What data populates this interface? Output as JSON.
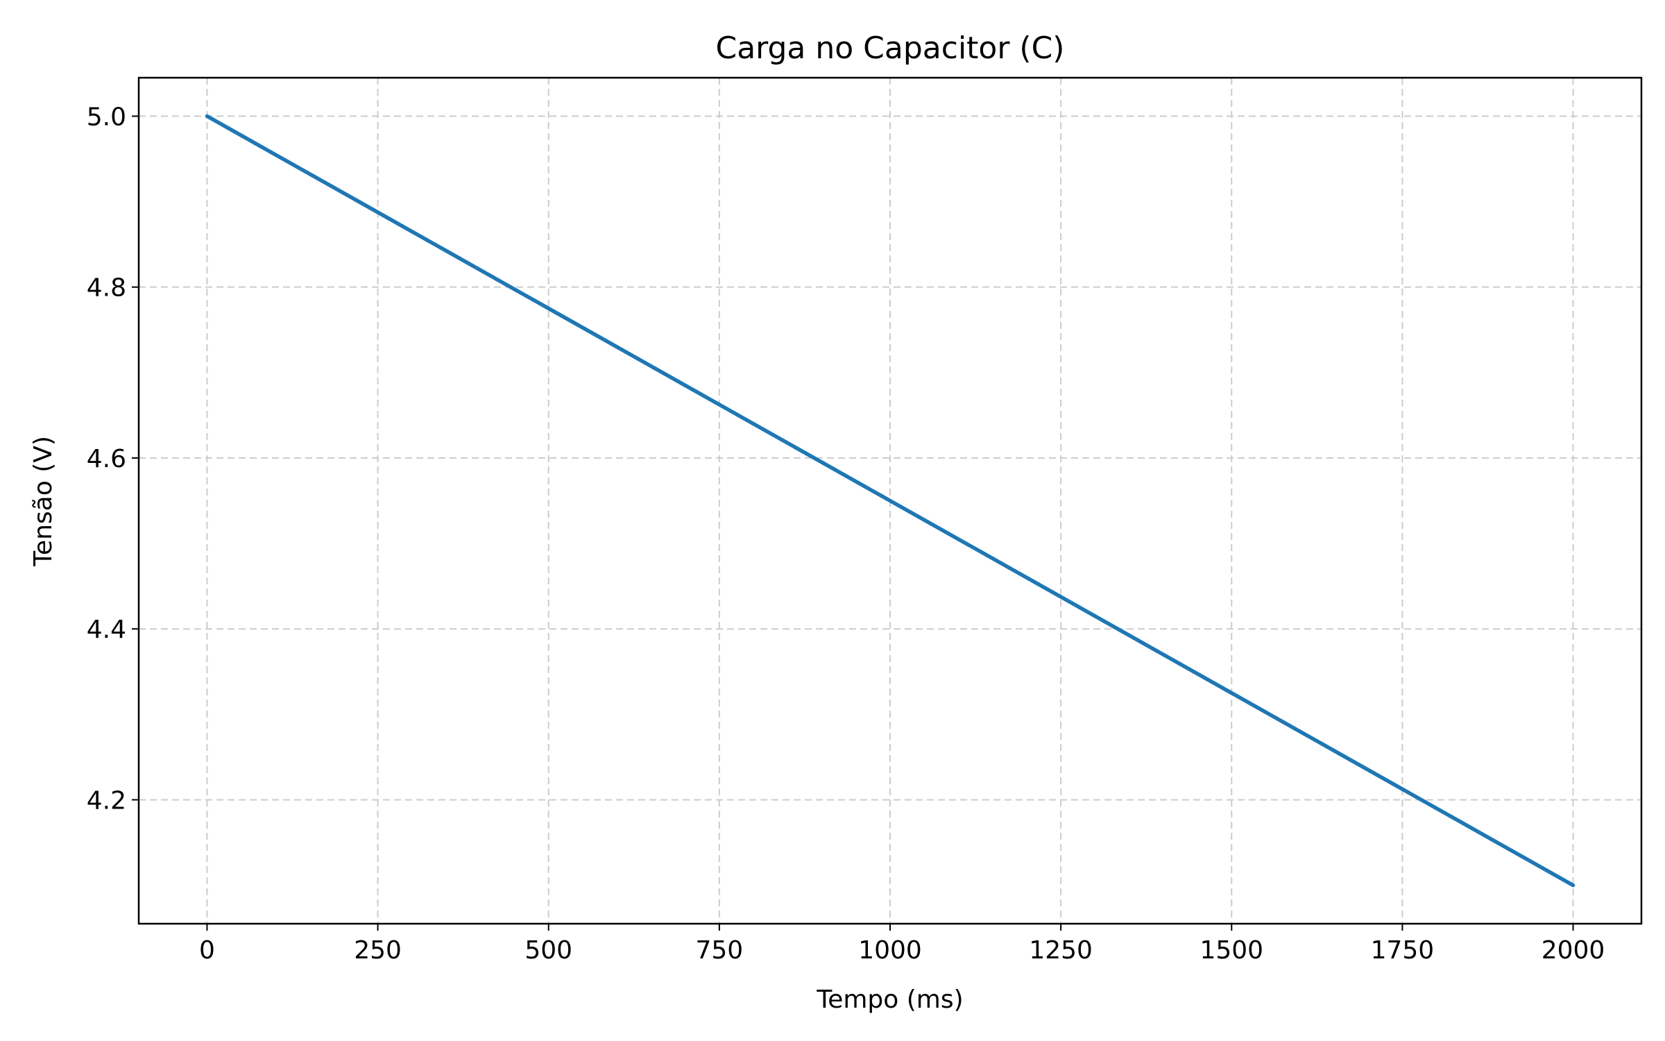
{
  "chart_data": {
    "type": "line",
    "title": "Carga no Capacitor (C)",
    "xlabel": "Tempo (ms)",
    "ylabel": "Tensão (V)",
    "xlim": [
      -100,
      2100
    ],
    "ylim": [
      4.055,
      5.045
    ],
    "x_ticks": [
      0,
      250,
      500,
      750,
      1000,
      1250,
      1500,
      1750,
      2000
    ],
    "x_tick_labels": [
      "0",
      "250",
      "500",
      "750",
      "1000",
      "1250",
      "1500",
      "1750",
      "2000"
    ],
    "y_ticks": [
      4.2,
      4.4,
      4.6,
      4.8,
      5.0
    ],
    "y_tick_labels": [
      "4.2",
      "4.4",
      "4.6",
      "4.8",
      "5.0"
    ],
    "grid": true,
    "series": [
      {
        "color": "#1f77b4",
        "x": [
          0,
          250,
          500,
          750,
          1000,
          1250,
          1500,
          1750,
          2000
        ],
        "y": [
          5.0,
          4.8875,
          4.775,
          4.6625,
          4.55,
          4.4375,
          4.325,
          4.2125,
          4.1
        ]
      }
    ]
  }
}
